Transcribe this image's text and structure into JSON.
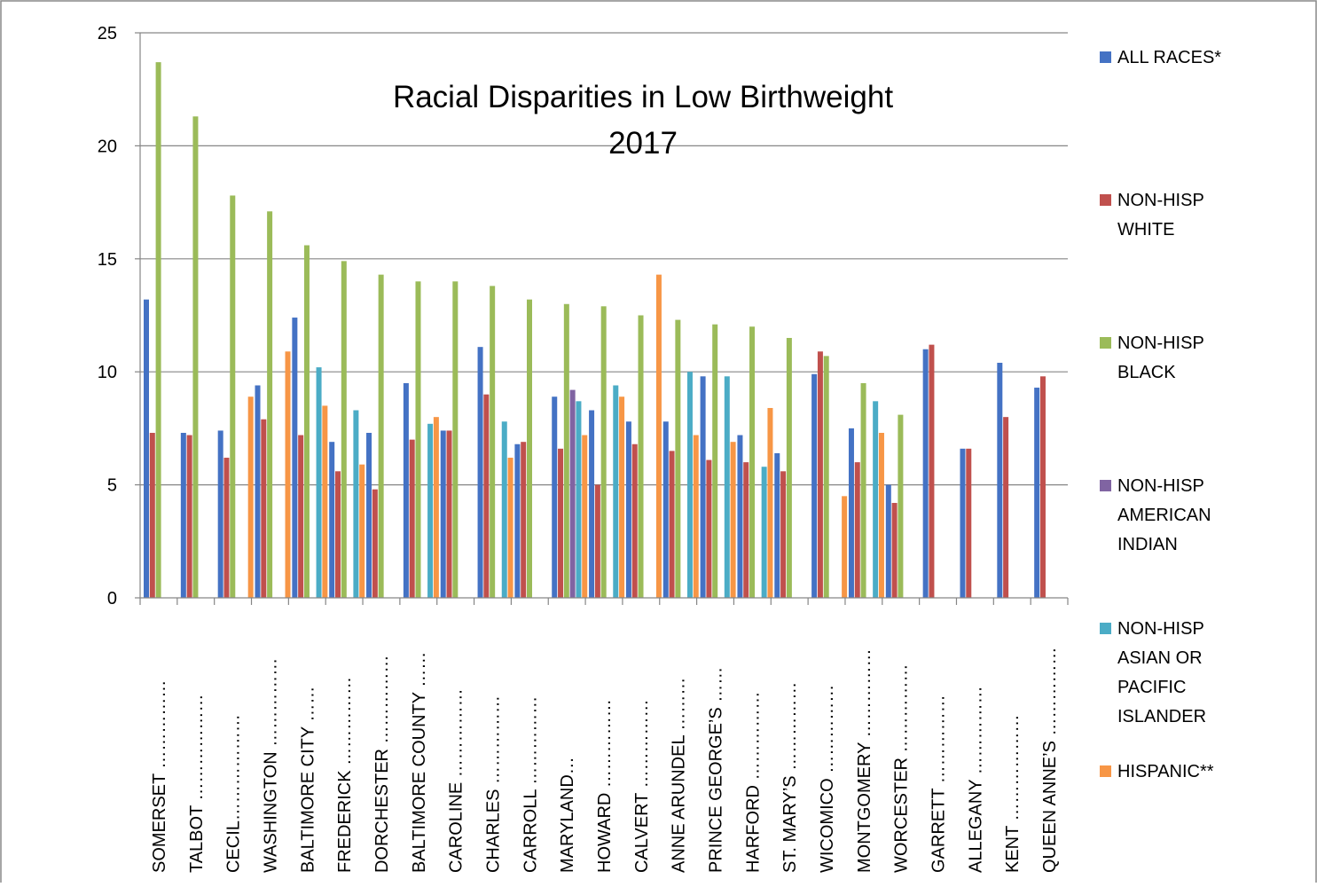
{
  "chart_data": {
    "type": "bar",
    "title": "Racial Disparities in Low Birthweight",
    "subtitle": "2017",
    "xlabel": "",
    "ylabel": "",
    "ylim": [
      0,
      25
    ],
    "yticks": [
      0,
      5,
      10,
      15,
      20,
      25
    ],
    "grid": true,
    "legend_position": "right",
    "categories": [
      "SOMERSET ……………",
      "TALBOT ………………",
      "CECIL………………",
      "WASHINGTON ……………",
      "BALTIMORE CITY ……",
      "FREDERICK ……………",
      "DORCHESTER ……………",
      "BALTIMORE COUNTY ……",
      "CAROLINE ……………",
      "CHARLES ……………",
      "CARROLL ……………",
      "MARYLAND…",
      "HOWARD ……………",
      "CALVERT ……………",
      "ANNE ARUNDEL ………",
      "PRINCE GEORGE’S ……",
      "HARFORD ……………",
      "ST. MARY’S ……………",
      "WICOMICO ……………",
      "MONTGOMERY ……………",
      "WORCESTER ……………",
      "GARRETT ……………",
      "ALLEGANY ……………",
      "KENT ………………",
      "QUEEN ANNE’S ……………"
    ],
    "series": [
      {
        "name": "ALL RACES*",
        "color": "#4472C4",
        "values": [
          13.2,
          7.3,
          7.4,
          9.4,
          12.4,
          6.9,
          7.3,
          9.5,
          7.4,
          11.1,
          6.8,
          8.9,
          8.3,
          7.8,
          7.8,
          9.8,
          7.2,
          6.4,
          9.9,
          7.5,
          5.0,
          11.0,
          6.6,
          10.4,
          9.3
        ]
      },
      {
        "name": "NON-HISP WHITE",
        "color": "#C0504D",
        "values": [
          7.3,
          7.2,
          6.2,
          7.9,
          7.2,
          5.6,
          4.8,
          7.0,
          7.4,
          9.0,
          6.9,
          6.6,
          5.0,
          6.8,
          6.5,
          6.1,
          6.0,
          5.6,
          10.9,
          6.0,
          4.2,
          11.2,
          6.6,
          8.0,
          9.8
        ]
      },
      {
        "name": "NON-HISP BLACK",
        "color": "#9BBB59",
        "values": [
          23.7,
          21.3,
          17.8,
          17.1,
          15.6,
          14.9,
          14.3,
          14.0,
          14.0,
          13.8,
          13.2,
          13.0,
          12.9,
          12.5,
          12.3,
          12.1,
          12.0,
          11.5,
          10.7,
          9.5,
          8.1,
          null,
          null,
          null,
          null
        ]
      },
      {
        "name": "NON-HISP AMERICAN INDIAN",
        "color": "#8064A2",
        "values": [
          null,
          null,
          null,
          null,
          null,
          null,
          null,
          null,
          null,
          null,
          null,
          9.2,
          null,
          null,
          null,
          null,
          null,
          null,
          null,
          null,
          null,
          null,
          null,
          null,
          null
        ]
      },
      {
        "name": "NON-HISP ASIAN OR PACIFIC ISLANDER",
        "color": "#4BACC6",
        "values": [
          null,
          null,
          null,
          null,
          10.2,
          8.3,
          null,
          7.7,
          null,
          7.8,
          null,
          8.7,
          9.4,
          null,
          10.0,
          9.8,
          5.8,
          null,
          null,
          8.7,
          null,
          null,
          null,
          null,
          null
        ]
      },
      {
        "name": "HISPANIC**",
        "color": "#F79646",
        "values": [
          null,
          null,
          8.9,
          10.9,
          8.5,
          5.9,
          null,
          8.0,
          null,
          6.2,
          null,
          7.2,
          8.9,
          14.3,
          7.2,
          6.9,
          8.4,
          null,
          4.5,
          7.3,
          null,
          null,
          null,
          null,
          null
        ]
      }
    ]
  }
}
